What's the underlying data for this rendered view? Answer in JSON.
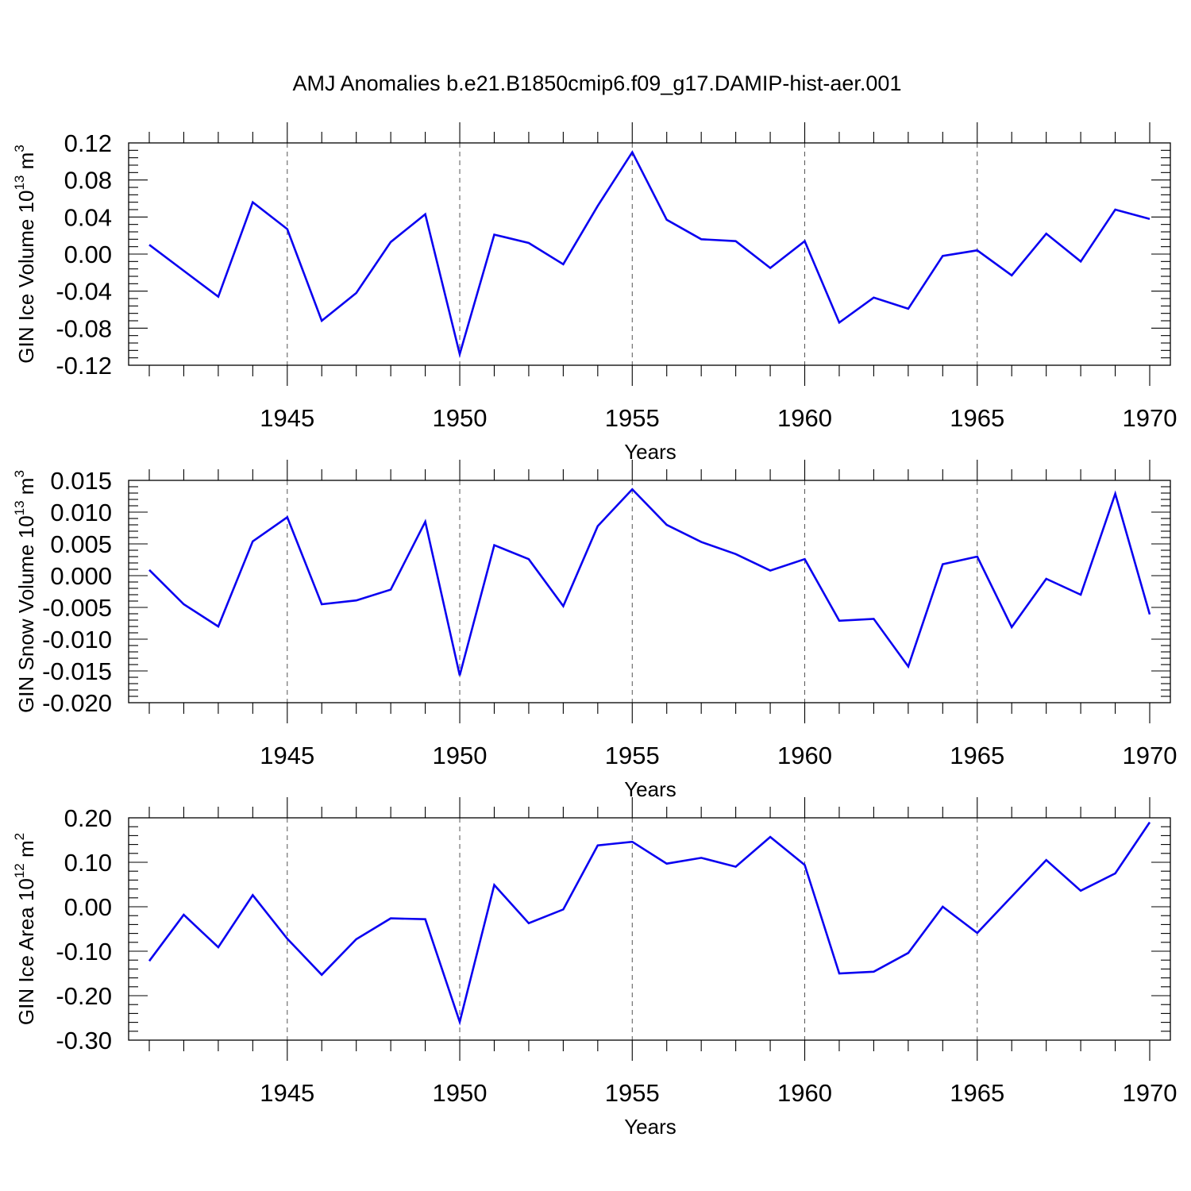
{
  "title": "AMJ Anomalies b.e21.B1850cmip6.f09_g17.DAMIP-hist-aer.001",
  "line_color": "#0a00f0",
  "chart_data": [
    {
      "type": "line",
      "xlabel": "Years",
      "ylabel": {
        "base": "GIN Ice Volume 10",
        "exp": "13",
        "unit": " m",
        "unit_exp": "3"
      },
      "xlim": [
        1941,
        1970
      ],
      "ylim": [
        -0.12,
        0.12
      ],
      "x_ticks": [
        "1945",
        "1950",
        "1955",
        "1960",
        "1965",
        "1970"
      ],
      "y_ticks": [
        "-0.12",
        "-0.08",
        "-0.04",
        "0.00",
        "0.04",
        "0.08",
        "0.12"
      ],
      "x": [
        1941,
        1942,
        1943,
        1944,
        1945,
        1946,
        1947,
        1948,
        1949,
        1950,
        1951,
        1952,
        1953,
        1954,
        1955,
        1956,
        1957,
        1958,
        1959,
        1960,
        1961,
        1962,
        1963,
        1964,
        1965,
        1966,
        1967,
        1968,
        1969,
        1970
      ],
      "values": [
        0.01,
        -0.018,
        -0.046,
        0.056,
        0.027,
        -0.072,
        -0.042,
        0.013,
        0.043,
        -0.108,
        0.021,
        0.012,
        -0.011,
        0.052,
        0.11,
        0.037,
        0.016,
        0.014,
        -0.015,
        0.014,
        -0.074,
        -0.047,
        -0.059,
        -0.002,
        0.004,
        -0.023,
        0.022,
        -0.008,
        0.048,
        0.038
      ]
    },
    {
      "type": "line",
      "xlabel": "Years",
      "ylabel": {
        "base": "GIN Snow Volume 10",
        "exp": "13",
        "unit": " m",
        "unit_exp": "3"
      },
      "xlim": [
        1941,
        1970
      ],
      "ylim": [
        -0.02,
        0.015
      ],
      "x_ticks": [
        "1945",
        "1950",
        "1955",
        "1960",
        "1965",
        "1970"
      ],
      "y_ticks": [
        "-0.020",
        "-0.015",
        "-0.010",
        "-0.005",
        "0.000",
        "0.005",
        "0.010",
        "0.015"
      ],
      "x": [
        1941,
        1942,
        1943,
        1944,
        1945,
        1946,
        1947,
        1948,
        1949,
        1950,
        1951,
        1952,
        1953,
        1954,
        1955,
        1956,
        1957,
        1958,
        1959,
        1960,
        1961,
        1962,
        1963,
        1964,
        1965,
        1966,
        1967,
        1968,
        1969,
        1970
      ],
      "values": [
        0.0009,
        -0.0045,
        -0.008,
        0.0054,
        0.0092,
        -0.0045,
        -0.0039,
        -0.0022,
        0.0085,
        -0.0157,
        0.0048,
        0.0026,
        -0.0048,
        0.0078,
        0.0136,
        0.008,
        0.0053,
        0.0034,
        0.0008,
        0.0026,
        -0.0071,
        -0.0068,
        -0.0143,
        0.0018,
        0.003,
        -0.0081,
        -0.0005,
        -0.003,
        0.0129,
        -0.0061
      ]
    },
    {
      "type": "line",
      "xlabel": "Years",
      "ylabel": {
        "base": "GIN Ice Area 10",
        "exp": "12",
        "unit": " m",
        "unit_exp": "2"
      },
      "xlim": [
        1941,
        1970
      ],
      "ylim": [
        -0.3,
        0.2
      ],
      "x_ticks": [
        "1945",
        "1950",
        "1955",
        "1960",
        "1965",
        "1970"
      ],
      "y_ticks": [
        "-0.30",
        "-0.20",
        "-0.10",
        "0.00",
        "0.10",
        "0.20"
      ],
      "x": [
        1941,
        1942,
        1943,
        1944,
        1945,
        1946,
        1947,
        1948,
        1949,
        1950,
        1951,
        1952,
        1953,
        1954,
        1955,
        1956,
        1957,
        1958,
        1959,
        1960,
        1961,
        1962,
        1963,
        1964,
        1965,
        1966,
        1967,
        1968,
        1969,
        1970
      ],
      "values": [
        -0.122,
        -0.018,
        -0.091,
        0.026,
        -0.072,
        -0.153,
        -0.073,
        -0.026,
        -0.028,
        -0.259,
        0.049,
        -0.037,
        -0.006,
        0.138,
        0.146,
        0.097,
        0.11,
        0.09,
        0.157,
        0.094,
        -0.15,
        -0.146,
        -0.104,
        0.0,
        -0.059,
        0.023,
        0.105,
        0.036,
        0.075,
        0.19
      ]
    }
  ]
}
